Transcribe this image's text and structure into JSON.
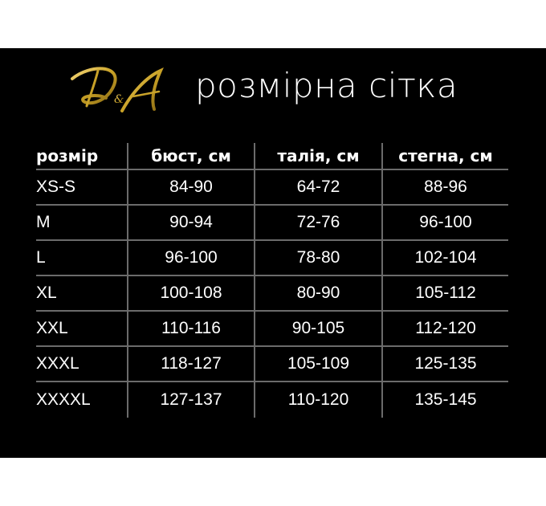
{
  "brand": {
    "logo_text": "D&A",
    "logo_color": "#c9a227"
  },
  "title": "розмірна сітка",
  "table": {
    "headers": [
      "розмір",
      "бюст, см",
      "талія, см",
      "стегна, см"
    ],
    "rows": [
      [
        "XS-S",
        "84-90",
        "64-72",
        "88-96"
      ],
      [
        "M",
        "90-94",
        "72-76",
        "96-100"
      ],
      [
        "L",
        "96-100",
        "78-80",
        "102-104"
      ],
      [
        "XL",
        "100-108",
        "80-90",
        "105-112"
      ],
      [
        "XXL",
        "110-116",
        "90-105",
        "112-120"
      ],
      [
        "XXXL",
        "118-127",
        "105-109",
        "125-135"
      ],
      [
        "XXXXL",
        "127-137",
        "110-120",
        "135-145"
      ]
    ]
  }
}
